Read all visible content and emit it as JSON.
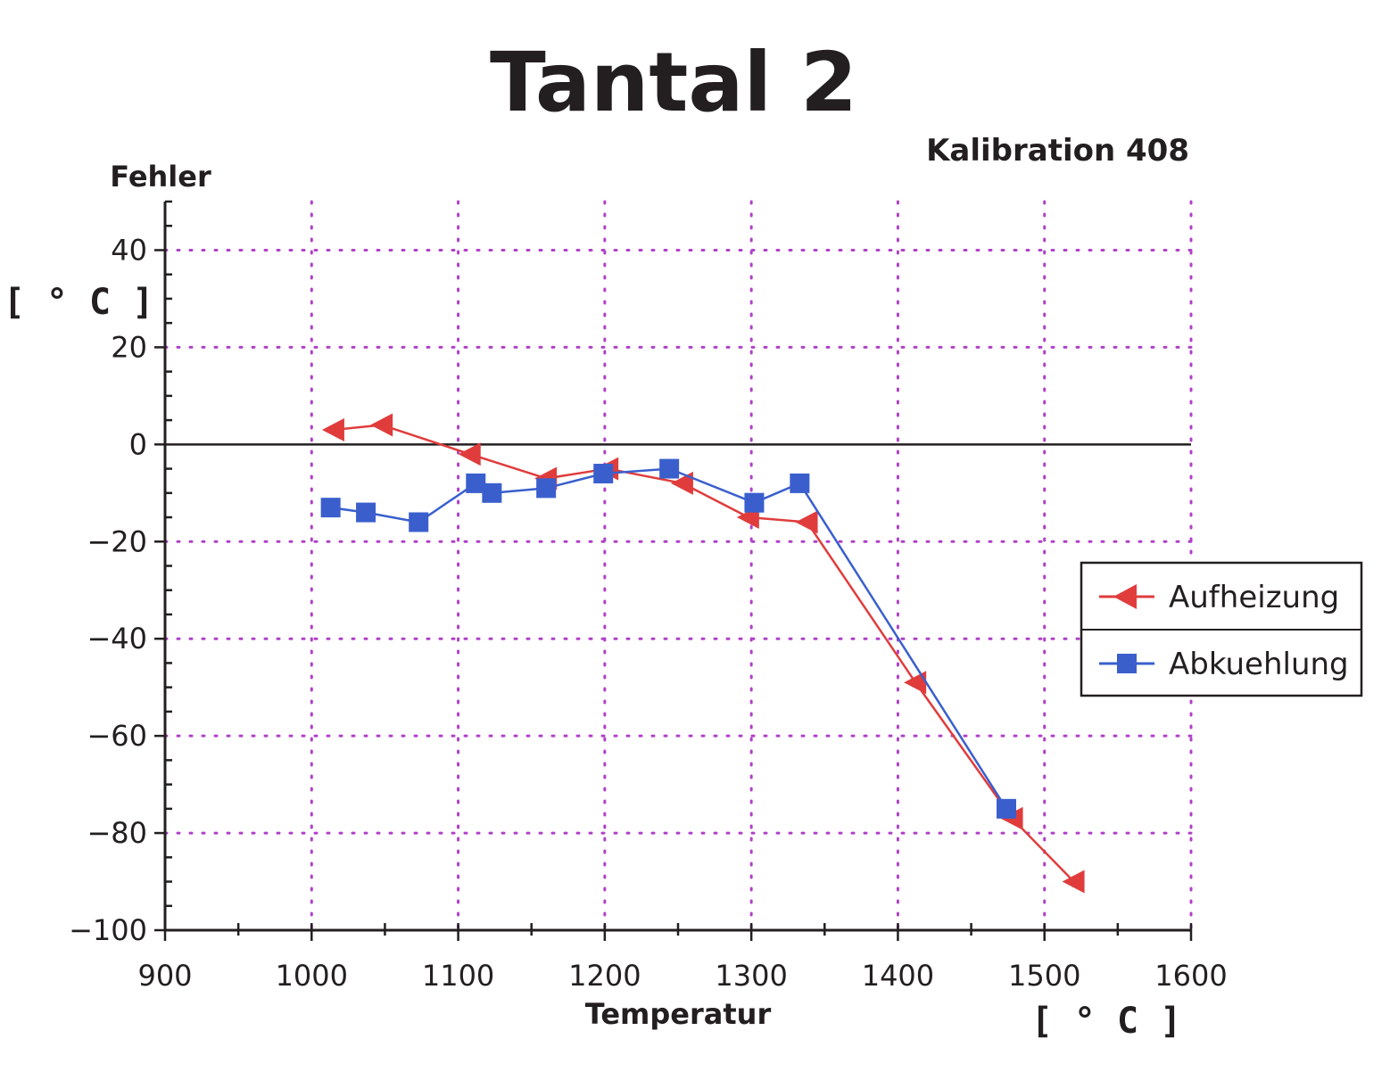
{
  "chart_data": {
    "type": "line",
    "title": "Tantal 2",
    "subtitle": "Kalibration 408",
    "xlabel": "Temperatur",
    "xunit": "[ ° C ]",
    "ylabel": "Fehler",
    "yunit": "[ ° C ]",
    "xlim": [
      900,
      1600
    ],
    "ylim": [
      -100,
      50
    ],
    "xticks": [
      "900",
      "1000",
      "1100",
      "1200",
      "1300",
      "1400",
      "1500",
      "1600"
    ],
    "xtick_values": [
      900,
      1000,
      1100,
      1200,
      1300,
      1400,
      1500,
      1600
    ],
    "yticks": [
      "40",
      "20",
      "0",
      "−20",
      "−40",
      "−60",
      "−80",
      "−100"
    ],
    "ytick_values": [
      40,
      20,
      0,
      -20,
      -40,
      -60,
      -80,
      -100
    ],
    "grid": "dotted",
    "legend_position": "right",
    "series": [
      {
        "name": "Aufheizung",
        "marker": "triangle-left",
        "color": "#e03c3c",
        "x": [
          1015,
          1048,
          1108,
          1160,
          1202,
          1253,
          1298,
          1338,
          1412,
          1478,
          1520
        ],
        "y": [
          3,
          4,
          -2,
          -7,
          -5,
          -8,
          -15,
          -16,
          -49,
          -77,
          -90
        ]
      },
      {
        "name": "Abkuehlung",
        "marker": "square",
        "color": "#3a5fcd",
        "x": [
          1013,
          1037,
          1073,
          1112,
          1123,
          1160,
          1199,
          1244,
          1302,
          1333,
          1474
        ],
        "y": [
          -13,
          -14,
          -16,
          -8,
          -10,
          -9,
          -6,
          -5,
          -12,
          -8,
          -75
        ]
      }
    ]
  },
  "colors": {
    "grid": "#b040c8",
    "axis": "#231f20"
  }
}
